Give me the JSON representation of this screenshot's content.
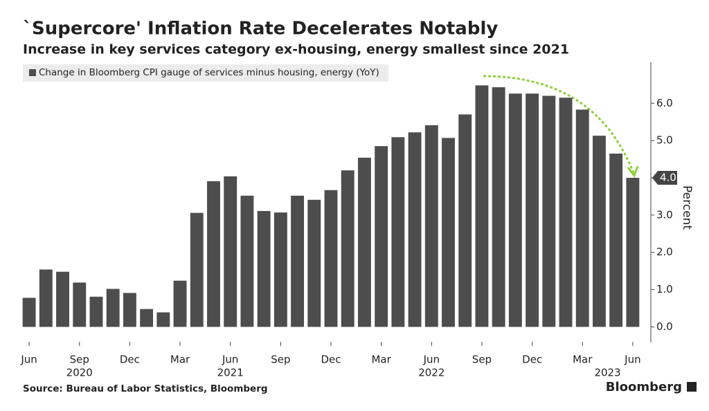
{
  "chart_data": {
    "type": "bar",
    "title": "`Supercore' Inflation Rate Decelerates Notably",
    "subtitle": "Increase in key services category ex-housing, energy smallest since 2021",
    "source": "Source: Bureau of Labor Statistics, Bloomberg",
    "brand": "Bloomberg",
    "y_axis_label": "Percent",
    "series": [
      {
        "name": "Change in Bloomberg CPI gauge of services minus housing, energy (YoY)",
        "color": "#4d4d4d",
        "values": [
          0.78,
          1.54,
          1.48,
          1.19,
          0.81,
          1.02,
          0.91,
          0.48,
          0.39,
          1.24,
          3.06,
          3.91,
          4.04,
          3.52,
          3.11,
          3.07,
          3.52,
          3.41,
          3.67,
          4.2,
          4.54,
          4.85,
          5.09,
          5.22,
          5.41,
          5.07,
          5.7,
          6.48,
          6.43,
          6.26,
          6.26,
          6.2,
          6.15,
          5.83,
          5.13,
          4.65,
          4.0
        ],
        "value_labels": [
          null,
          null,
          null,
          null,
          null,
          null,
          null,
          null,
          null,
          null,
          null,
          null,
          null,
          null,
          null,
          null,
          null,
          null,
          null,
          null,
          null,
          null,
          null,
          null,
          null,
          null,
          null,
          null,
          null,
          null,
          null,
          null,
          null,
          null,
          null,
          null,
          "4.0"
        ]
      }
    ],
    "categories": [
      "Jun",
      null,
      null,
      "Sep",
      null,
      null,
      "Dec",
      null,
      null,
      "Mar",
      null,
      null,
      "Jun",
      null,
      null,
      "Sep",
      null,
      null,
      "Dec",
      null,
      null,
      "Mar",
      null,
      null,
      "Jun",
      null,
      null,
      "Sep",
      null,
      null,
      "Dec",
      null,
      null,
      "Mar",
      null,
      null,
      "Jun"
    ],
    "year_labels": [
      "2020",
      "2021",
      "2022",
      "2023"
    ],
    "ylim": [
      -0.4,
      7.1
    ],
    "yticks": [
      {
        "value": 0,
        "label": "0.0"
      },
      {
        "value": 1,
        "label": "1.0"
      },
      {
        "value": 2,
        "label": "2.0"
      },
      {
        "value": 3,
        "label": "3.0"
      },
      {
        "value": 4,
        "label": "4.0"
      },
      {
        "value": 5,
        "label": "5.0"
      },
      {
        "value": 6,
        "label": "6.0"
      }
    ],
    "grid": false
  }
}
